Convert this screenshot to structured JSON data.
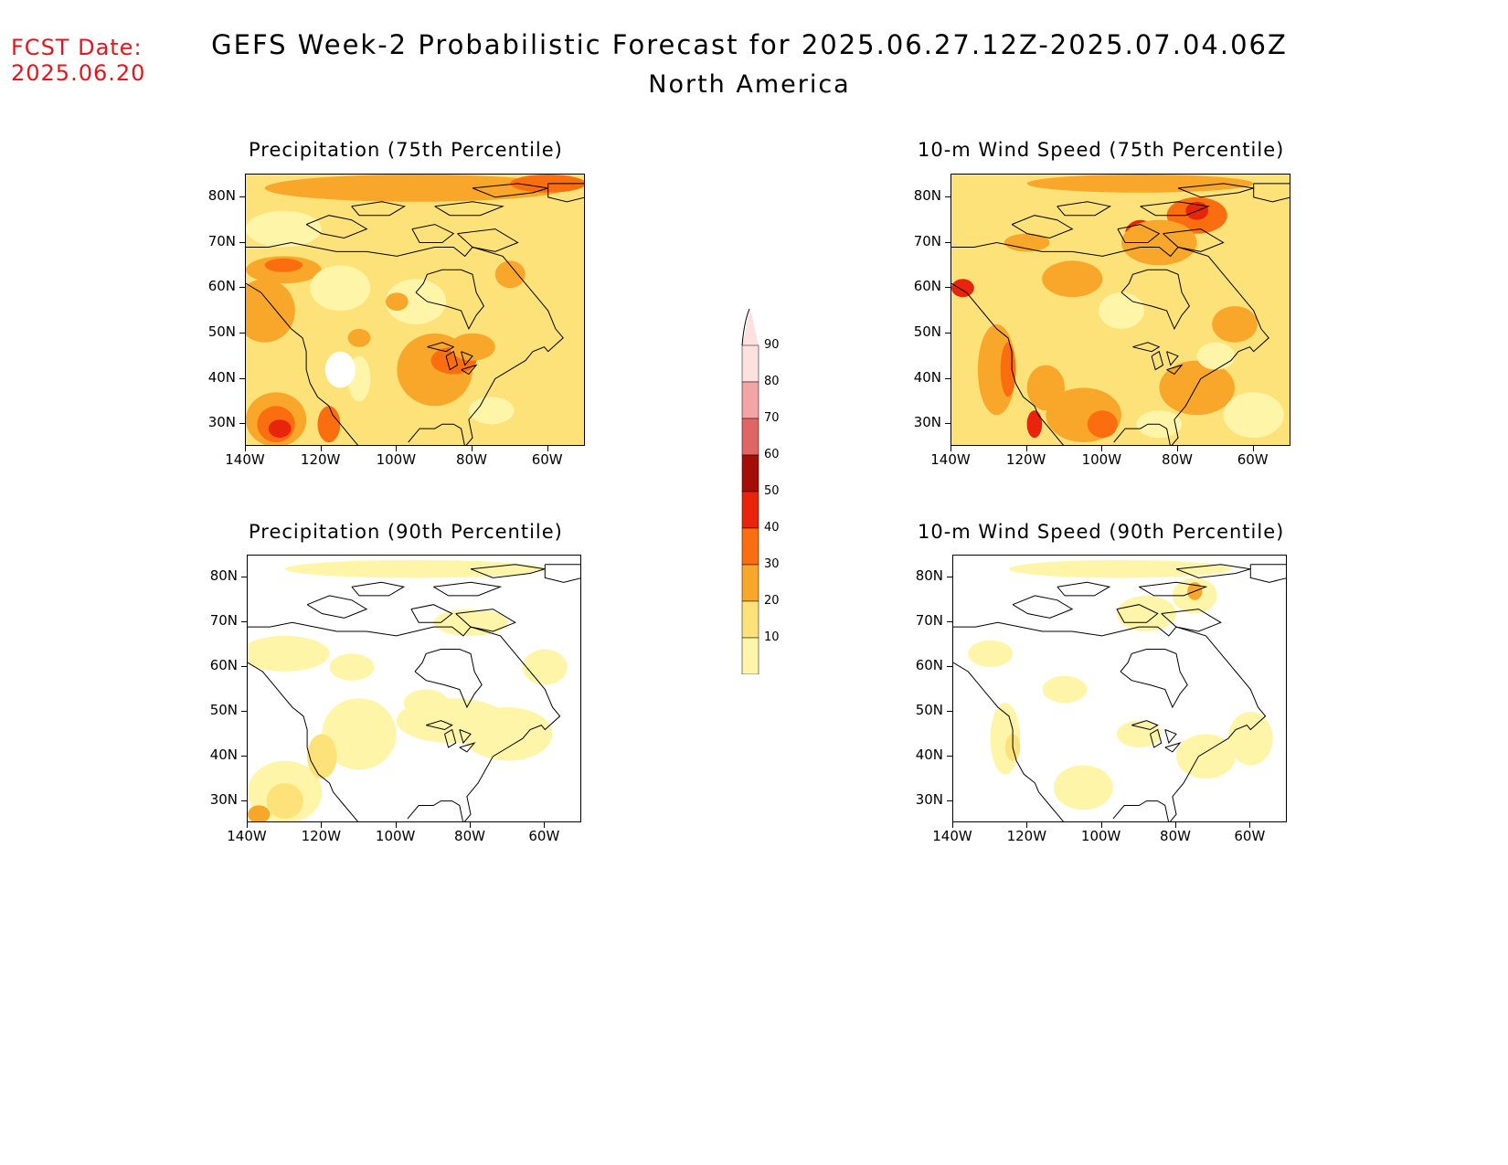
{
  "header": {
    "fcst_label": "FCST Date:",
    "fcst_date": "2025.06.20",
    "title": "GEFS Week-2 Probabilistic Forecast for 2025.06.27.12Z-2025.07.04.06Z",
    "subtitle": "North America"
  },
  "panels": [
    {
      "title": "Precipitation (75th Percentile)"
    },
    {
      "title": "10-m Wind Speed (75th Percentile)"
    },
    {
      "title": "Precipitation (90th Percentile)"
    },
    {
      "title": "10-m Wind Speed (90th Percentile)"
    }
  ],
  "axes": {
    "lat_labels": [
      "80N",
      "70N",
      "60N",
      "50N",
      "40N",
      "30N"
    ],
    "lon_labels": [
      "140W",
      "120W",
      "100W",
      "80W",
      "60W"
    ]
  },
  "colorbar": {
    "labels": [
      "90",
      "80",
      "70",
      "60",
      "50",
      "40",
      "30",
      "20",
      "10"
    ],
    "colors": {
      "c10_20": "#fff5a8",
      "c20_30": "#fde27a",
      "c30_40": "#f9a72a",
      "c40_50": "#fb6e10",
      "c50_60": "#e8240c",
      "c60_70": "#a50e08",
      "c70_80": "#e06666",
      "c80_90": "#f3a5a5",
      "c90_100": "#fde0e0"
    }
  },
  "chart_data": {
    "type": "heatmap",
    "legend_placement": "center",
    "xlim": [
      "140W",
      "50W"
    ],
    "ylim": [
      "25N",
      "85N"
    ]
  }
}
